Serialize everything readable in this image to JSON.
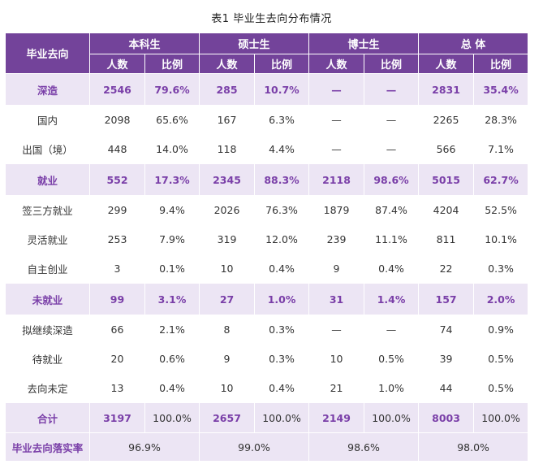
{
  "caption": "表1  毕业生去向分布情况",
  "header": {
    "rowhead": "毕业去向",
    "groups": [
      "本科生",
      "硕士生",
      "博士生",
      "总  体"
    ],
    "sub": [
      "人数",
      "比例"
    ]
  },
  "rows": [
    {
      "kind": "sec",
      "label": "深造",
      "cells": [
        "2546",
        "79.6%",
        "285",
        "10.7%",
        "—",
        "—",
        "2831",
        "35.4%"
      ]
    },
    {
      "kind": "plain",
      "label": "国内",
      "cells": [
        "2098",
        "65.6%",
        "167",
        "6.3%",
        "—",
        "—",
        "2265",
        "28.3%"
      ]
    },
    {
      "kind": "plain",
      "label": "出国（境）",
      "cells": [
        "448",
        "14.0%",
        "118",
        "4.4%",
        "—",
        "—",
        "566",
        "7.1%"
      ]
    },
    {
      "kind": "sec",
      "label": "就业",
      "cells": [
        "552",
        "17.3%",
        "2345",
        "88.3%",
        "2118",
        "98.6%",
        "5015",
        "62.7%"
      ]
    },
    {
      "kind": "plain",
      "label": "签三方就业",
      "cells": [
        "299",
        "9.4%",
        "2026",
        "76.3%",
        "1879",
        "87.4%",
        "4204",
        "52.5%"
      ]
    },
    {
      "kind": "plain",
      "label": "灵活就业",
      "cells": [
        "253",
        "7.9%",
        "319",
        "12.0%",
        "239",
        "11.1%",
        "811",
        "10.1%"
      ]
    },
    {
      "kind": "plain",
      "label": "自主创业",
      "cells": [
        "3",
        "0.1%",
        "10",
        "0.4%",
        "9",
        "0.4%",
        "22",
        "0.3%"
      ]
    },
    {
      "kind": "sec",
      "label": "未就业",
      "cells": [
        "99",
        "3.1%",
        "27",
        "1.0%",
        "31",
        "1.4%",
        "157",
        "2.0%"
      ]
    },
    {
      "kind": "plain",
      "label": "拟继续深造",
      "cells": [
        "66",
        "2.1%",
        "8",
        "0.3%",
        "—",
        "—",
        "74",
        "0.9%"
      ]
    },
    {
      "kind": "plain",
      "label": "待就业",
      "cells": [
        "20",
        "0.6%",
        "9",
        "0.3%",
        "10",
        "0.5%",
        "39",
        "0.5%"
      ]
    },
    {
      "kind": "plain",
      "label": "去向未定",
      "cells": [
        "13",
        "0.4%",
        "10",
        "0.4%",
        "21",
        "1.0%",
        "44",
        "0.5%"
      ]
    }
  ],
  "total": {
    "label": "合计",
    "cells": [
      "3197",
      "100.0%",
      "2657",
      "100.0%",
      "2149",
      "100.0%",
      "8003",
      "100.0%"
    ]
  },
  "rate": {
    "label": "毕业去向落实率",
    "cells": [
      "96.9%",
      "99.0%",
      "98.6%",
      "98.0%"
    ]
  },
  "colors": {
    "header_bg": "#73439a",
    "section_bg": "#ece5f4",
    "accent_text": "#7a3fa8"
  }
}
